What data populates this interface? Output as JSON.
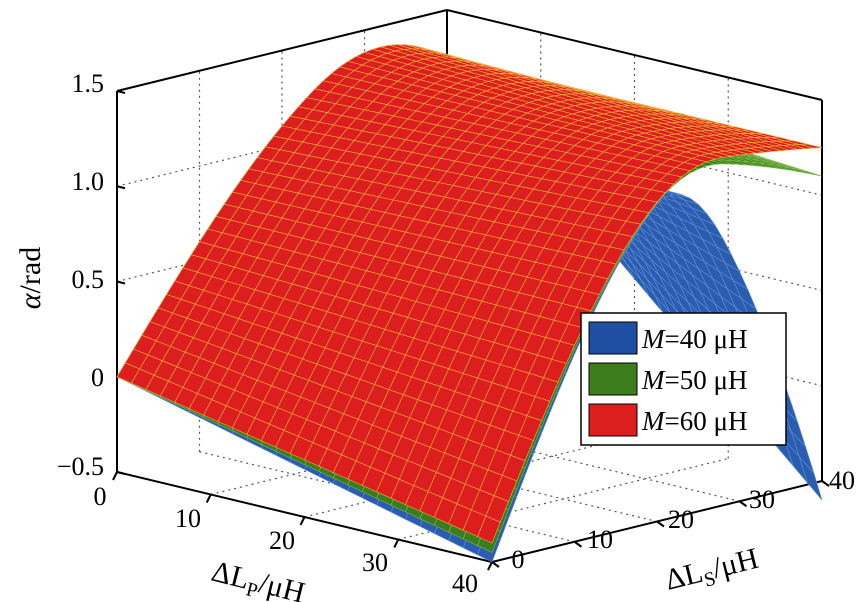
{
  "chart_data": {
    "type": "surface3d",
    "title": "",
    "zlabel_symbol": "α",
    "zlabel_unit": "/rad",
    "xlabel_delta": "ΔL",
    "xlabel_sub": "P",
    "xlabel_unit": "/μH",
    "ylabel_delta": "ΔL",
    "ylabel_sub": "S",
    "ylabel_unit": "/μH",
    "z_ticks": [
      "1.5",
      "1.0",
      "0.5",
      "0",
      "−0.5"
    ],
    "x_ticks": [
      "0",
      "10",
      "20",
      "30",
      "40"
    ],
    "y_ticks": [
      "0",
      "10",
      "20",
      "30",
      "40"
    ],
    "xlim": [
      0,
      40
    ],
    "ylim": [
      0,
      40
    ],
    "zlim": [
      -0.5,
      1.5
    ],
    "grid": true,
    "legend_position": "right",
    "series": [
      {
        "name_var": "M",
        "name_rest": "=40 μH",
        "color": "#1f4fa0",
        "corner_values": {
          "lp0_ls0": 0.0,
          "lp40_ls0": -0.5,
          "lp0_ls40": 1.25,
          "lp40_ls40": -0.6
        },
        "peak_value": 1.5
      },
      {
        "name_var": "M",
        "name_rest": "=50 μH",
        "color": "#3c7d1e",
        "corner_values": {
          "lp0_ls0": 0.0,
          "lp40_ls0": -0.45,
          "lp0_ls40": 1.25,
          "lp40_ls40": 1.1
        },
        "peak_value": 1.5
      },
      {
        "name_var": "M",
        "name_rest": "=60 μH",
        "color": "#dc1e1e",
        "corner_values": {
          "lp0_ls0": 0.0,
          "lp40_ls0": -0.4,
          "lp0_ls40": 1.25,
          "lp40_ls40": 1.25
        },
        "peak_value": 1.5
      }
    ]
  }
}
